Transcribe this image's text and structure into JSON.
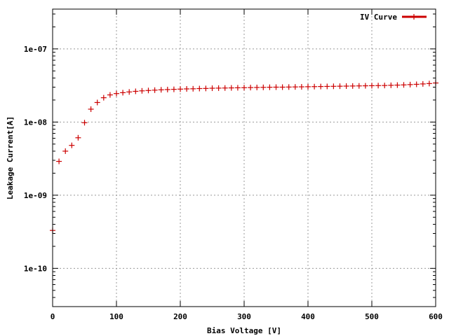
{
  "chart_data": {
    "type": "scatter",
    "xlabel": "Bias Voltage [V]",
    "ylabel": "Leakage Current[A]",
    "xlim": [
      0,
      600
    ],
    "ylim": [
      3e-11,
      3.5e-07
    ],
    "yscale": "log",
    "grid": true,
    "legend_position": "top-right",
    "x_ticks": [
      {
        "value": 0,
        "label": "0"
      },
      {
        "value": 100,
        "label": "100"
      },
      {
        "value": 200,
        "label": "200"
      },
      {
        "value": 300,
        "label": "300"
      },
      {
        "value": 400,
        "label": "400"
      },
      {
        "value": 500,
        "label": "500"
      },
      {
        "value": 600,
        "label": "600"
      }
    ],
    "y_ticks": [
      {
        "value": 1e-10,
        "label": "1e-10"
      },
      {
        "value": 1e-09,
        "label": "1e-09"
      },
      {
        "value": 1e-08,
        "label": "1e-08"
      },
      {
        "value": 1e-07,
        "label": "1e-07"
      }
    ],
    "series": [
      {
        "name": "IV Curve",
        "color": "#cc0000",
        "marker": "plus",
        "x": [
          0,
          10,
          20,
          30,
          40,
          50,
          60,
          70,
          80,
          90,
          100,
          110,
          120,
          130,
          140,
          150,
          160,
          170,
          180,
          190,
          200,
          210,
          220,
          230,
          240,
          250,
          260,
          270,
          280,
          290,
          300,
          310,
          320,
          330,
          340,
          350,
          360,
          370,
          380,
          390,
          400,
          410,
          420,
          430,
          440,
          450,
          460,
          470,
          480,
          490,
          500,
          510,
          520,
          530,
          540,
          550,
          560,
          570,
          580,
          590,
          600
        ],
        "y": [
          3.3e-10,
          2.9e-09,
          4e-09,
          4.8e-09,
          6.1e-09,
          9.8e-09,
          1.5e-08,
          1.85e-08,
          2.15e-08,
          2.35e-08,
          2.45e-08,
          2.52e-08,
          2.58e-08,
          2.63e-08,
          2.67e-08,
          2.7e-08,
          2.73e-08,
          2.76e-08,
          2.78e-08,
          2.8e-08,
          2.82e-08,
          2.84e-08,
          2.85e-08,
          2.87e-08,
          2.88e-08,
          2.9e-08,
          2.91e-08,
          2.92e-08,
          2.93e-08,
          2.94e-08,
          2.95e-08,
          2.96e-08,
          2.97e-08,
          2.98e-08,
          2.99e-08,
          3e-08,
          3e-08,
          3.01e-08,
          3.02e-08,
          3.03e-08,
          3.04e-08,
          3.05e-08,
          3.06e-08,
          3.07e-08,
          3.08e-08,
          3.09e-08,
          3.1e-08,
          3.11e-08,
          3.12e-08,
          3.13e-08,
          3.14e-08,
          3.15e-08,
          3.16e-08,
          3.18e-08,
          3.2e-08,
          3.22e-08,
          3.25e-08,
          3.28e-08,
          3.32e-08,
          3.36e-08,
          3.42e-08
        ]
      }
    ]
  }
}
